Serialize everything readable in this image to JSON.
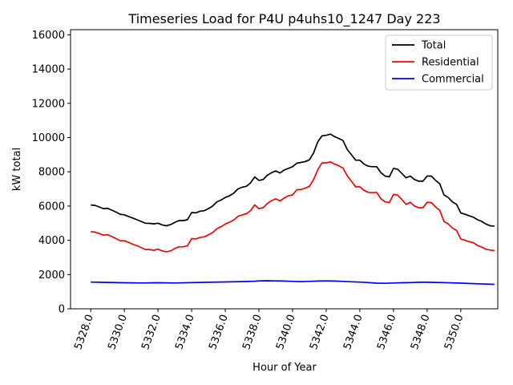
{
  "chart_data": {
    "type": "line",
    "title": "Timeseries Load for P4U p4uhs10_1247  Day 223",
    "xlabel": "Hour of Year",
    "ylabel": "kW total",
    "xlim": [
      5326.8,
      5352.2
    ],
    "ylim": [
      0,
      16300
    ],
    "x_ticks": [
      5328,
      5330,
      5332,
      5334,
      5336,
      5338,
      5340,
      5342,
      5344,
      5346,
      5348,
      5350
    ],
    "x_tick_labels": [
      "5328.0",
      "5330.0",
      "5332.0",
      "5334.0",
      "5336.0",
      "5338.0",
      "5340.0",
      "5342.0",
      "5344.0",
      "5346.0",
      "5348.0",
      "5350.0"
    ],
    "y_ticks": [
      0,
      2000,
      4000,
      6000,
      8000,
      10000,
      12000,
      14000,
      16000
    ],
    "y_tick_labels": [
      "0",
      "2000",
      "4000",
      "6000",
      "8000",
      "10000",
      "12000",
      "14000",
      "16000"
    ],
    "legend_position": "top-right",
    "series": [
      {
        "name": "Total",
        "color": "#000000",
        "points": [
          [
            5328.0,
            6060
          ],
          [
            5328.25,
            6040
          ],
          [
            5328.5,
            5950
          ],
          [
            5328.75,
            5850
          ],
          [
            5329.0,
            5870
          ],
          [
            5329.25,
            5760
          ],
          [
            5329.5,
            5650
          ],
          [
            5329.75,
            5520
          ],
          [
            5330.0,
            5490
          ],
          [
            5330.25,
            5390
          ],
          [
            5330.5,
            5300
          ],
          [
            5330.75,
            5200
          ],
          [
            5331.0,
            5100
          ],
          [
            5331.25,
            5000
          ],
          [
            5331.5,
            4990
          ],
          [
            5331.75,
            4960
          ],
          [
            5332.0,
            5000
          ],
          [
            5332.25,
            4900
          ],
          [
            5332.5,
            4850
          ],
          [
            5332.75,
            4920
          ],
          [
            5333.0,
            5050
          ],
          [
            5333.25,
            5150
          ],
          [
            5333.5,
            5150
          ],
          [
            5333.75,
            5200
          ],
          [
            5334.0,
            5620
          ],
          [
            5334.25,
            5600
          ],
          [
            5334.5,
            5700
          ],
          [
            5334.75,
            5730
          ],
          [
            5335.0,
            5850
          ],
          [
            5335.25,
            6000
          ],
          [
            5335.5,
            6250
          ],
          [
            5335.75,
            6350
          ],
          [
            5336.0,
            6500
          ],
          [
            5336.25,
            6600
          ],
          [
            5336.5,
            6750
          ],
          [
            5336.75,
            7000
          ],
          [
            5337.0,
            7100
          ],
          [
            5337.25,
            7150
          ],
          [
            5337.5,
            7350
          ],
          [
            5337.75,
            7700
          ],
          [
            5338.0,
            7500
          ],
          [
            5338.25,
            7550
          ],
          [
            5338.5,
            7800
          ],
          [
            5338.75,
            7950
          ],
          [
            5339.0,
            8050
          ],
          [
            5339.25,
            7930
          ],
          [
            5339.5,
            8100
          ],
          [
            5339.75,
            8200
          ],
          [
            5340.0,
            8300
          ],
          [
            5340.25,
            8500
          ],
          [
            5340.5,
            8550
          ],
          [
            5340.75,
            8600
          ],
          [
            5341.0,
            8700
          ],
          [
            5341.25,
            9100
          ],
          [
            5341.5,
            9750
          ],
          [
            5341.75,
            10100
          ],
          [
            5342.0,
            10130
          ],
          [
            5342.25,
            10200
          ],
          [
            5342.5,
            10050
          ],
          [
            5342.75,
            9950
          ],
          [
            5343.0,
            9820
          ],
          [
            5343.25,
            9300
          ],
          [
            5343.5,
            9000
          ],
          [
            5343.75,
            8680
          ],
          [
            5344.0,
            8680
          ],
          [
            5344.25,
            8450
          ],
          [
            5344.5,
            8330
          ],
          [
            5344.75,
            8300
          ],
          [
            5345.0,
            8300
          ],
          [
            5345.25,
            7950
          ],
          [
            5345.5,
            7750
          ],
          [
            5345.75,
            7700
          ],
          [
            5346.0,
            8200
          ],
          [
            5346.25,
            8150
          ],
          [
            5346.5,
            7900
          ],
          [
            5346.75,
            7650
          ],
          [
            5347.0,
            7750
          ],
          [
            5347.25,
            7550
          ],
          [
            5347.5,
            7450
          ],
          [
            5347.75,
            7450
          ],
          [
            5348.0,
            7750
          ],
          [
            5348.25,
            7750
          ],
          [
            5348.5,
            7500
          ],
          [
            5348.75,
            7300
          ],
          [
            5349.0,
            6650
          ],
          [
            5349.25,
            6500
          ],
          [
            5349.5,
            6250
          ],
          [
            5349.75,
            6100
          ],
          [
            5350.0,
            5600
          ],
          [
            5350.25,
            5520
          ],
          [
            5350.5,
            5430
          ],
          [
            5350.75,
            5350
          ],
          [
            5351.0,
            5200
          ],
          [
            5351.25,
            5100
          ],
          [
            5351.5,
            4950
          ],
          [
            5351.75,
            4850
          ],
          [
            5352.0,
            4830
          ]
        ]
      },
      {
        "name": "Residential",
        "color": "#ff0000",
        "points": [
          [
            5328.0,
            4500
          ],
          [
            5328.25,
            4480
          ],
          [
            5328.5,
            4400
          ],
          [
            5328.75,
            4300
          ],
          [
            5329.0,
            4330
          ],
          [
            5329.25,
            4220
          ],
          [
            5329.5,
            4100
          ],
          [
            5329.75,
            3980
          ],
          [
            5330.0,
            3970
          ],
          [
            5330.25,
            3880
          ],
          [
            5330.5,
            3770
          ],
          [
            5330.75,
            3680
          ],
          [
            5331.0,
            3580
          ],
          [
            5331.25,
            3460
          ],
          [
            5331.5,
            3460
          ],
          [
            5331.75,
            3420
          ],
          [
            5332.0,
            3480
          ],
          [
            5332.25,
            3380
          ],
          [
            5332.5,
            3330
          ],
          [
            5332.75,
            3380
          ],
          [
            5333.0,
            3520
          ],
          [
            5333.25,
            3620
          ],
          [
            5333.5,
            3620
          ],
          [
            5333.75,
            3680
          ],
          [
            5334.0,
            4100
          ],
          [
            5334.25,
            4080
          ],
          [
            5334.5,
            4170
          ],
          [
            5334.75,
            4200
          ],
          [
            5335.0,
            4320
          ],
          [
            5335.25,
            4450
          ],
          [
            5335.5,
            4680
          ],
          [
            5335.75,
            4790
          ],
          [
            5336.0,
            4950
          ],
          [
            5336.25,
            5060
          ],
          [
            5336.5,
            5180
          ],
          [
            5336.75,
            5400
          ],
          [
            5337.0,
            5480
          ],
          [
            5337.25,
            5550
          ],
          [
            5337.5,
            5730
          ],
          [
            5337.75,
            6070
          ],
          [
            5338.0,
            5850
          ],
          [
            5338.25,
            5900
          ],
          [
            5338.5,
            6150
          ],
          [
            5338.75,
            6320
          ],
          [
            5339.0,
            6420
          ],
          [
            5339.25,
            6300
          ],
          [
            5339.5,
            6470
          ],
          [
            5339.75,
            6600
          ],
          [
            5340.0,
            6650
          ],
          [
            5340.25,
            6950
          ],
          [
            5340.5,
            6970
          ],
          [
            5340.75,
            7040
          ],
          [
            5341.0,
            7150
          ],
          [
            5341.25,
            7550
          ],
          [
            5341.5,
            8130
          ],
          [
            5341.75,
            8520
          ],
          [
            5342.0,
            8520
          ],
          [
            5342.25,
            8580
          ],
          [
            5342.5,
            8450
          ],
          [
            5342.75,
            8350
          ],
          [
            5343.0,
            8220
          ],
          [
            5343.25,
            7770
          ],
          [
            5343.5,
            7450
          ],
          [
            5343.75,
            7120
          ],
          [
            5344.0,
            7130
          ],
          [
            5344.25,
            6920
          ],
          [
            5344.5,
            6800
          ],
          [
            5344.75,
            6780
          ],
          [
            5345.0,
            6800
          ],
          [
            5345.25,
            6420
          ],
          [
            5345.5,
            6250
          ],
          [
            5345.75,
            6200
          ],
          [
            5346.0,
            6680
          ],
          [
            5346.25,
            6640
          ],
          [
            5346.5,
            6380
          ],
          [
            5346.75,
            6100
          ],
          [
            5347.0,
            6220
          ],
          [
            5347.25,
            6000
          ],
          [
            5347.5,
            5900
          ],
          [
            5347.75,
            5900
          ],
          [
            5348.0,
            6220
          ],
          [
            5348.25,
            6200
          ],
          [
            5348.5,
            5950
          ],
          [
            5348.75,
            5750
          ],
          [
            5349.0,
            5100
          ],
          [
            5349.25,
            4960
          ],
          [
            5349.5,
            4720
          ],
          [
            5349.75,
            4580
          ],
          [
            5350.0,
            4080
          ],
          [
            5350.25,
            4000
          ],
          [
            5350.5,
            3920
          ],
          [
            5350.75,
            3860
          ],
          [
            5351.0,
            3700
          ],
          [
            5351.25,
            3600
          ],
          [
            5351.5,
            3480
          ],
          [
            5351.75,
            3430
          ],
          [
            5352.0,
            3400
          ]
        ]
      },
      {
        "name": "Commercial",
        "color": "#0000ff",
        "points": [
          [
            5328.0,
            1560
          ],
          [
            5328.5,
            1550
          ],
          [
            5329.0,
            1540
          ],
          [
            5330.0,
            1520
          ],
          [
            5331.0,
            1510
          ],
          [
            5332.0,
            1520
          ],
          [
            5333.0,
            1510
          ],
          [
            5334.0,
            1530
          ],
          [
            5335.0,
            1550
          ],
          [
            5336.0,
            1570
          ],
          [
            5337.0,
            1590
          ],
          [
            5337.75,
            1610
          ],
          [
            5338.0,
            1630
          ],
          [
            5338.5,
            1640
          ],
          [
            5339.0,
            1630
          ],
          [
            5339.5,
            1620
          ],
          [
            5340.0,
            1600
          ],
          [
            5340.5,
            1590
          ],
          [
            5341.0,
            1600
          ],
          [
            5341.5,
            1620
          ],
          [
            5342.0,
            1630
          ],
          [
            5342.5,
            1620
          ],
          [
            5343.0,
            1600
          ],
          [
            5343.5,
            1580
          ],
          [
            5344.0,
            1560
          ],
          [
            5344.5,
            1530
          ],
          [
            5345.0,
            1500
          ],
          [
            5345.5,
            1490
          ],
          [
            5346.0,
            1510
          ],
          [
            5346.5,
            1520
          ],
          [
            5347.0,
            1530
          ],
          [
            5347.5,
            1550
          ],
          [
            5348.0,
            1550
          ],
          [
            5348.5,
            1540
          ],
          [
            5349.0,
            1530
          ],
          [
            5350.0,
            1500
          ],
          [
            5351.0,
            1460
          ],
          [
            5352.0,
            1430
          ]
        ]
      }
    ]
  }
}
